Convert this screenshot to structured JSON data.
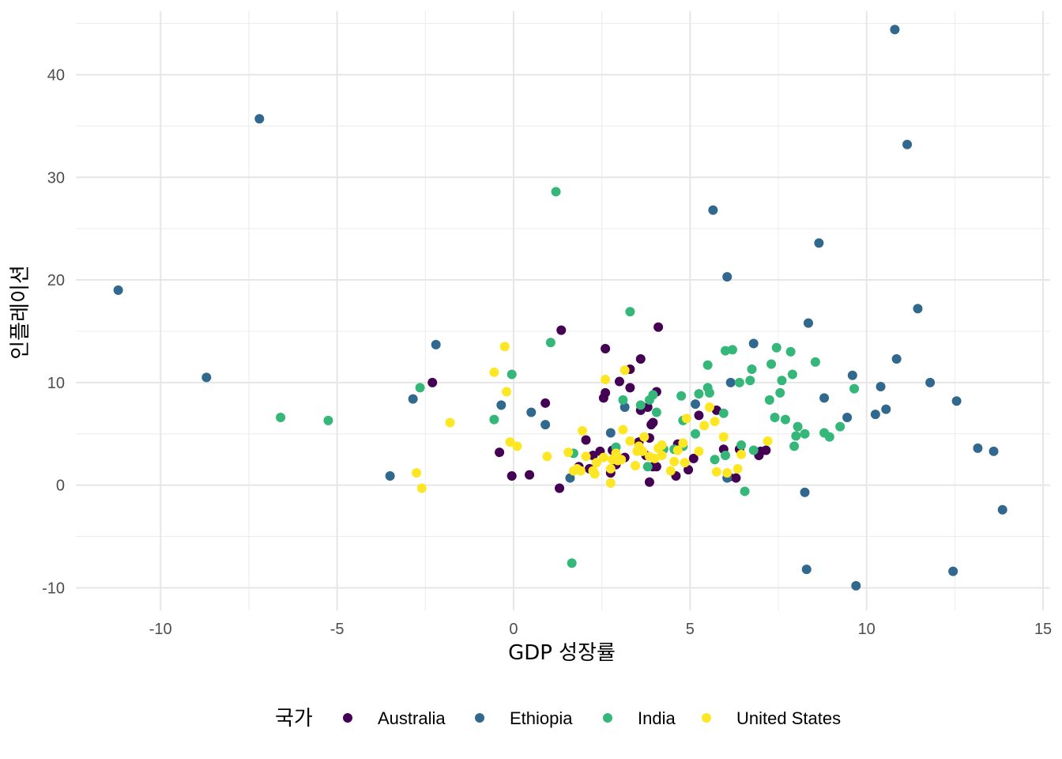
{
  "chart_data": {
    "type": "scatter",
    "xlabel": "GDP 성장률",
    "ylabel": "인플레이션",
    "xlim": [
      -12.4,
      15.2
    ],
    "ylim": [
      -12.2,
      46.2
    ],
    "x_ticks": [
      -10,
      -5,
      0,
      5,
      10,
      15
    ],
    "y_ticks": [
      -10,
      0,
      10,
      20,
      30,
      40
    ],
    "x_tick_labels": [
      "-10",
      "-5",
      "0",
      "5",
      "10",
      "15"
    ],
    "y_tick_labels": [
      "-10",
      "0",
      "10",
      "20",
      "30",
      "40"
    ],
    "grid": true,
    "legend": {
      "title": "국가",
      "position": "bottom"
    },
    "series": [
      {
        "name": "Australia",
        "color": "#440154",
        "points": [
          [
            -2.3,
            10
          ],
          [
            -0.4,
            3.2
          ],
          [
            -0.05,
            0.9
          ],
          [
            0.45,
            1
          ],
          [
            0.9,
            8
          ],
          [
            1.3,
            -0.3
          ],
          [
            1.35,
            15.1
          ],
          [
            1.85,
            1.8
          ],
          [
            2.05,
            4.4
          ],
          [
            2.15,
            1.6
          ],
          [
            2.25,
            2.9
          ],
          [
            2.45,
            3.3
          ],
          [
            2.55,
            8.5
          ],
          [
            2.6,
            9
          ],
          [
            2.6,
            13.3
          ],
          [
            2.75,
            1.2
          ],
          [
            2.8,
            3.4
          ],
          [
            2.9,
            2
          ],
          [
            3.0,
            10.1
          ],
          [
            3.15,
            2.7
          ],
          [
            3.3,
            11.3
          ],
          [
            3.3,
            9.5
          ],
          [
            3.55,
            4.2
          ],
          [
            3.6,
            7.3
          ],
          [
            3.6,
            12.3
          ],
          [
            3.75,
            2.9
          ],
          [
            3.8,
            7.6
          ],
          [
            3.85,
            4.6
          ],
          [
            3.85,
            0.3
          ],
          [
            3.9,
            5.9
          ],
          [
            3.95,
            6.1
          ],
          [
            3.95,
            1.8
          ],
          [
            4.05,
            1.8
          ],
          [
            4.05,
            9.1
          ],
          [
            4.1,
            15.4
          ],
          [
            4.6,
            0.9
          ],
          [
            4.65,
            4
          ],
          [
            4.95,
            1.5
          ],
          [
            5.1,
            2.6
          ],
          [
            5.25,
            6.8
          ],
          [
            5.75,
            7.3
          ],
          [
            5.95,
            3.5
          ],
          [
            6.1,
            0.8
          ],
          [
            6.3,
            0.7
          ],
          [
            6.4,
            3.5
          ],
          [
            6.95,
            2.9
          ],
          [
            7.0,
            3.3
          ],
          [
            7.15,
            3.4
          ]
        ]
      },
      {
        "name": "Ethiopia",
        "color": "#31688E",
        "points": [
          [
            -11.2,
            19
          ],
          [
            -8.7,
            10.5
          ],
          [
            -7.2,
            35.7
          ],
          [
            -3.5,
            0.9
          ],
          [
            -2.85,
            8.4
          ],
          [
            -2.2,
            13.7
          ],
          [
            -0.35,
            7.8
          ],
          [
            0.5,
            7.1
          ],
          [
            0.9,
            5.9
          ],
          [
            1.6,
            0.7
          ],
          [
            2.75,
            5.1
          ],
          [
            3.0,
            2.5
          ],
          [
            3.15,
            7.6
          ],
          [
            5.15,
            7.9
          ],
          [
            5.65,
            26.8
          ],
          [
            6.05,
            20.3
          ],
          [
            6.05,
            0.7
          ],
          [
            6.15,
            10
          ],
          [
            6.8,
            13.8
          ],
          [
            8.25,
            -0.7
          ],
          [
            8.3,
            -8.2
          ],
          [
            8.35,
            15.8
          ],
          [
            8.65,
            23.6
          ],
          [
            8.8,
            8.5
          ],
          [
            9.45,
            6.6
          ],
          [
            9.6,
            10.7
          ],
          [
            9.7,
            -9.8
          ],
          [
            10.25,
            6.9
          ],
          [
            10.4,
            9.6
          ],
          [
            10.55,
            7.4
          ],
          [
            10.8,
            44.4
          ],
          [
            10.85,
            12.3
          ],
          [
            11.15,
            33.2
          ],
          [
            11.45,
            17.2
          ],
          [
            11.8,
            10
          ],
          [
            12.45,
            -8.4
          ],
          [
            12.55,
            8.2
          ],
          [
            13.15,
            3.6
          ],
          [
            13.6,
            3.3
          ],
          [
            13.85,
            -2.4
          ]
        ]
      },
      {
        "name": "India",
        "color": "#35B779",
        "points": [
          [
            -6.6,
            6.6
          ],
          [
            -5.25,
            6.3
          ],
          [
            -2.65,
            9.5
          ],
          [
            -0.55,
            6.4
          ],
          [
            -0.05,
            10.8
          ],
          [
            1.05,
            13.9
          ],
          [
            1.2,
            28.6
          ],
          [
            1.65,
            -7.6
          ],
          [
            1.7,
            3.1
          ],
          [
            2.9,
            3.7
          ],
          [
            3.1,
            8.3
          ],
          [
            3.3,
            16.9
          ],
          [
            3.6,
            7.8
          ],
          [
            3.8,
            1.8
          ],
          [
            3.85,
            8.3
          ],
          [
            3.95,
            8.8
          ],
          [
            4.05,
            7.1
          ],
          [
            4.25,
            3.5
          ],
          [
            4.55,
            3.5
          ],
          [
            4.75,
            8.7
          ],
          [
            4.8,
            6.3
          ],
          [
            4.8,
            3.8
          ],
          [
            5.15,
            5
          ],
          [
            5.25,
            8.9
          ],
          [
            5.5,
            11.7
          ],
          [
            5.5,
            9.5
          ],
          [
            5.55,
            9
          ],
          [
            5.7,
            2.5
          ],
          [
            5.95,
            7
          ],
          [
            6.0,
            13.1
          ],
          [
            6.0,
            2.9
          ],
          [
            6.2,
            13.2
          ],
          [
            6.4,
            10
          ],
          [
            6.45,
            3.9
          ],
          [
            6.55,
            -0.6
          ],
          [
            6.7,
            10.2
          ],
          [
            6.75,
            11.3
          ],
          [
            6.8,
            3.4
          ],
          [
            7.25,
            8.3
          ],
          [
            7.3,
            11.8
          ],
          [
            7.4,
            6.6
          ],
          [
            7.45,
            13.4
          ],
          [
            7.55,
            9
          ],
          [
            7.6,
            10.2
          ],
          [
            7.7,
            6.4
          ],
          [
            7.85,
            13
          ],
          [
            7.9,
            10.8
          ],
          [
            7.95,
            3.8
          ],
          [
            8.0,
            4.8
          ],
          [
            8.05,
            5.7
          ],
          [
            8.25,
            5
          ],
          [
            8.55,
            12
          ],
          [
            8.8,
            5.1
          ],
          [
            8.95,
            4.7
          ],
          [
            9.25,
            5.7
          ],
          [
            9.65,
            9.4
          ]
        ]
      },
      {
        "name": "United States",
        "color": "#FDE725",
        "points": [
          [
            -2.75,
            1.2
          ],
          [
            -2.6,
            -0.3
          ],
          [
            -1.8,
            6.1
          ],
          [
            -0.55,
            11
          ],
          [
            -0.25,
            13.5
          ],
          [
            -0.2,
            9.1
          ],
          [
            -0.1,
            4.2
          ],
          [
            0.1,
            3.8
          ],
          [
            0.95,
            2.8
          ],
          [
            1.55,
            3.2
          ],
          [
            1.7,
            1.4
          ],
          [
            1.8,
            1.6
          ],
          [
            1.9,
            1.4
          ],
          [
            1.95,
            5.3
          ],
          [
            2.05,
            2.8
          ],
          [
            2.25,
            1.4
          ],
          [
            2.3,
            1.1
          ],
          [
            2.35,
            2.2
          ],
          [
            2.55,
            2.7
          ],
          [
            2.6,
            10.3
          ],
          [
            2.75,
            0.2
          ],
          [
            2.75,
            1.6
          ],
          [
            2.8,
            2.5
          ],
          [
            2.9,
            3.1
          ],
          [
            2.95,
            2.4
          ],
          [
            3.05,
            2.5
          ],
          [
            3.1,
            5.4
          ],
          [
            3.15,
            11.2
          ],
          [
            3.3,
            4.3
          ],
          [
            3.45,
            1.9
          ],
          [
            3.5,
            3.3
          ],
          [
            3.55,
            3.8
          ],
          [
            3.65,
            3.3
          ],
          [
            3.7,
            4.7
          ],
          [
            3.85,
            2.8
          ],
          [
            4.0,
            2.6
          ],
          [
            4.1,
            3.6
          ],
          [
            4.2,
            3.9
          ],
          [
            4.2,
            2.9
          ],
          [
            4.45,
            1.4
          ],
          [
            4.55,
            2.3
          ],
          [
            4.65,
            3.4
          ],
          [
            4.8,
            4.1
          ],
          [
            4.85,
            2.2
          ],
          [
            4.9,
            6.5
          ],
          [
            5.25,
            3.3
          ],
          [
            5.4,
            5.8
          ],
          [
            5.55,
            7.6
          ],
          [
            5.7,
            6.2
          ],
          [
            5.75,
            1.3
          ],
          [
            5.95,
            4.7
          ],
          [
            6.05,
            1.2
          ],
          [
            6.35,
            1.6
          ],
          [
            6.45,
            3
          ],
          [
            7.2,
            4.3
          ]
        ]
      }
    ]
  }
}
